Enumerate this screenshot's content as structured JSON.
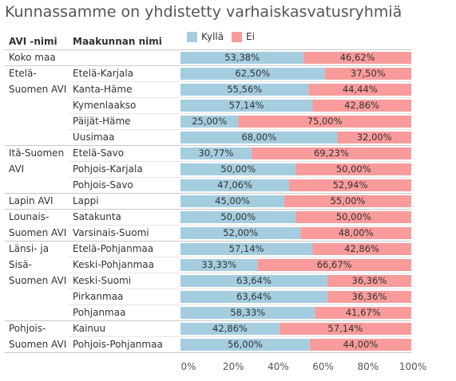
{
  "title": "Kunnassamme on yhdistetty varhaiskasvatusryhmiä",
  "headers": {
    "avi": "AVI -nimi",
    "region": "Maakunnan nimi"
  },
  "colors": {
    "kylla": "#a5cde0",
    "ei": "#f99b9b",
    "row_separator": "#e6e6e6",
    "group_separator": "#c8c8c8"
  },
  "chart_data": {
    "type": "bar",
    "orientation": "horizontal",
    "stacked": true,
    "percent": true,
    "legend": [
      {
        "name": "Kyllä",
        "color": "#a5cde0"
      },
      {
        "name": "Ei",
        "color": "#f99b9b"
      }
    ],
    "xlim": [
      0,
      100
    ],
    "x_ticks": [
      "0%",
      "20%",
      "40%",
      "60%",
      "80%",
      "100%"
    ],
    "groups": [
      {
        "avi": [
          "Koko maa"
        ],
        "rows": [
          {
            "name": "",
            "kylla": "53,38%",
            "ei": "46,62%"
          }
        ]
      },
      {
        "avi": [
          "Etelä-",
          "Suomen AVI"
        ],
        "rows": [
          {
            "name": "Etelä-Karjala",
            "kylla": "62,50%",
            "ei": "37,50%"
          },
          {
            "name": "Kanta-Häme",
            "kylla": "55,56%",
            "ei": "44,44%"
          },
          {
            "name": "Kymenlaakso",
            "kylla": "57,14%",
            "ei": "42,86%"
          },
          {
            "name": "Päijät-Häme",
            "kylla": "25,00%",
            "ei": "75,00%"
          },
          {
            "name": "Uusimaa",
            "kylla": "68,00%",
            "ei": "32,00%"
          }
        ]
      },
      {
        "avi": [
          "Itä-Suomen",
          "AVI"
        ],
        "rows": [
          {
            "name": "Etelä-Savo",
            "kylla": "30,77%",
            "ei": "69,23%"
          },
          {
            "name": "Pohjois-Karjala",
            "kylla": "50,00%",
            "ei": "50,00%"
          },
          {
            "name": "Pohjois-Savo",
            "kylla": "47,06%",
            "ei": "52,94%"
          }
        ]
      },
      {
        "avi": [
          "Lapin AVI"
        ],
        "rows": [
          {
            "name": "Lappi",
            "kylla": "45,00%",
            "ei": "55,00%"
          }
        ]
      },
      {
        "avi": [
          "Lounais-",
          "Suomen AVI"
        ],
        "rows": [
          {
            "name": "Satakunta",
            "kylla": "50,00%",
            "ei": "50,00%"
          },
          {
            "name": "Varsinais-Suomi",
            "kylla": "52,00%",
            "ei": "48,00%"
          }
        ]
      },
      {
        "avi": [
          "Länsi- ja",
          "Sisä-",
          "Suomen AVI"
        ],
        "rows": [
          {
            "name": "Etelä-Pohjanmaa",
            "kylla": "57,14%",
            "ei": "42,86%"
          },
          {
            "name": "Keski-Pohjanmaa",
            "kylla": "33,33%",
            "ei": "66,67%"
          },
          {
            "name": "Keski-Suomi",
            "kylla": "63,64%",
            "ei": "36,36%"
          },
          {
            "name": "Pirkanmaa",
            "kylla": "63,64%",
            "ei": "36,36%"
          },
          {
            "name": "Pohjanmaa",
            "kylla": "58,33%",
            "ei": "41,67%"
          }
        ]
      },
      {
        "avi": [
          "Pohjois-",
          "Suomen AVI"
        ],
        "rows": [
          {
            "name": "Kainuu",
            "kylla": "42,86%",
            "ei": "57,14%"
          },
          {
            "name": "Pohjois-Pohjanmaa",
            "kylla": "56,00%",
            "ei": "44,00%"
          }
        ]
      }
    ]
  }
}
